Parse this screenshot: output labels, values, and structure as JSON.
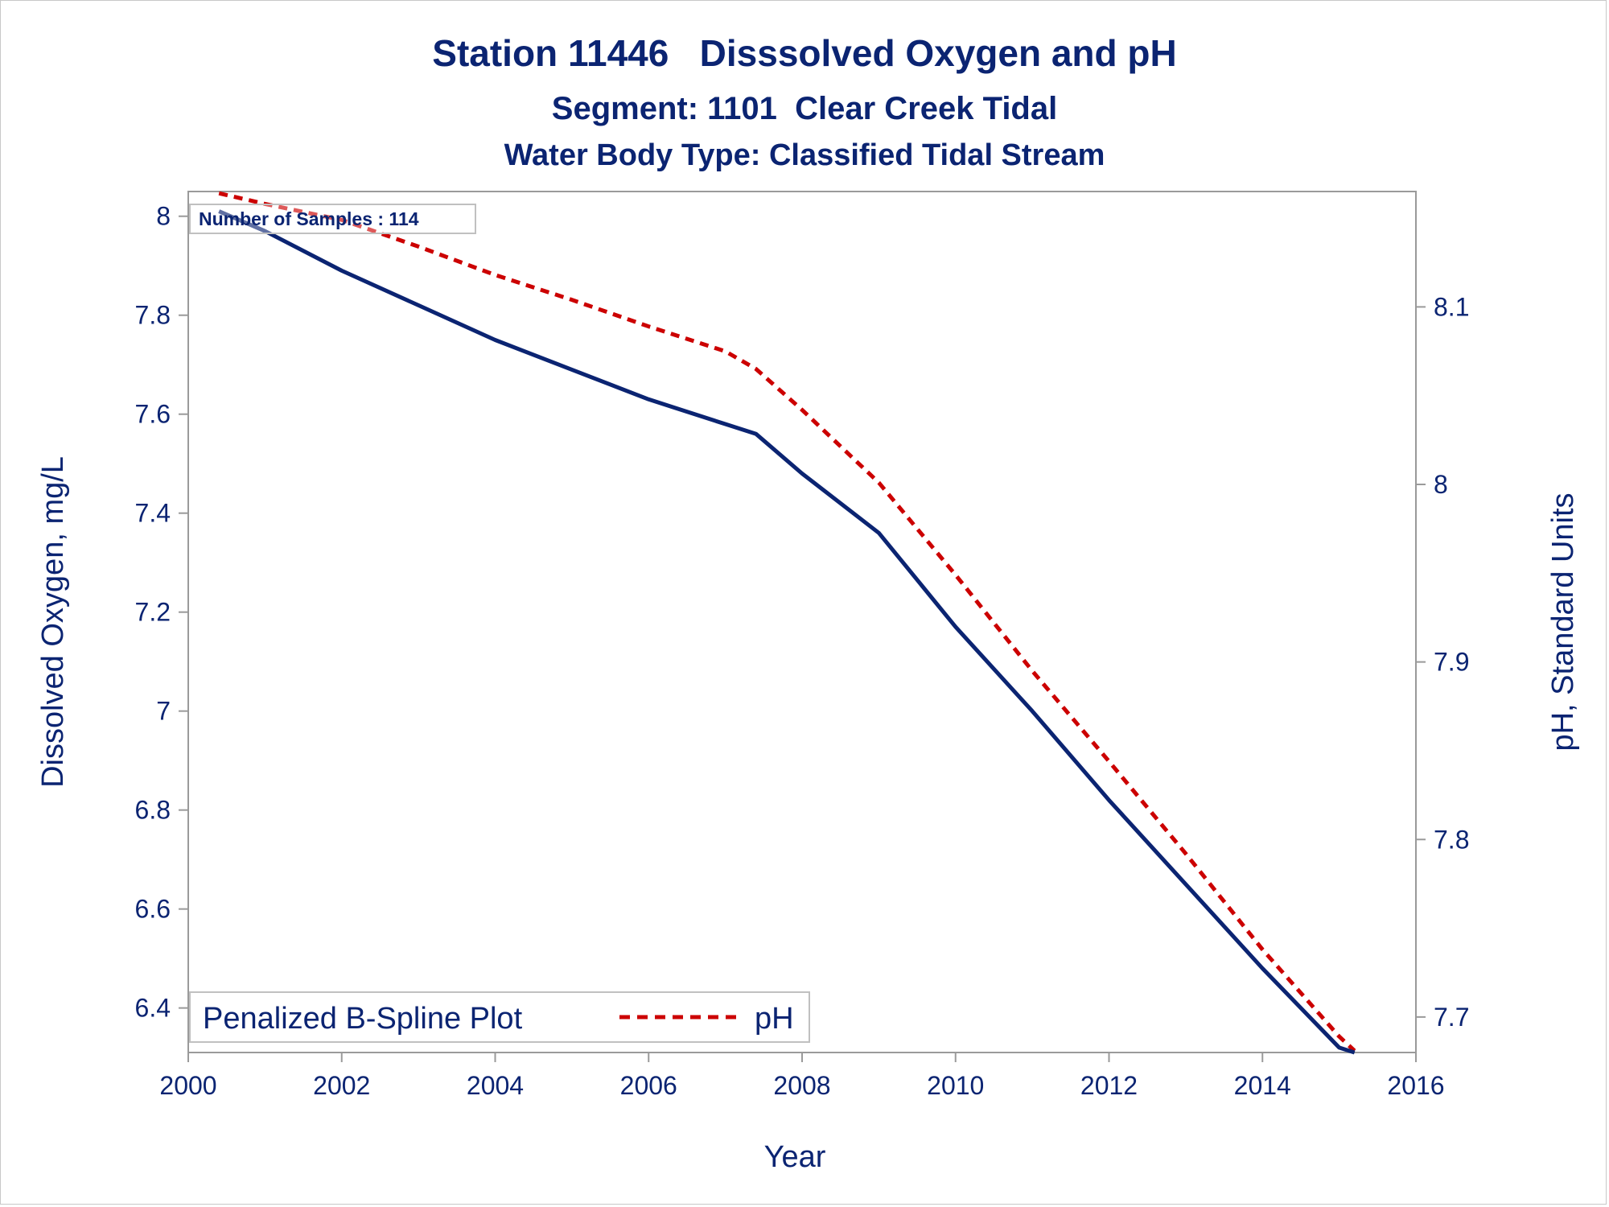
{
  "chart_data": {
    "type": "line",
    "title": "Station 11446   Disssolved Oxygen and pH",
    "subtitle": "Segment: 1101  Clear Creek Tidal",
    "subtitle2": "Water Body Type: Classified Tidal Stream",
    "xlabel": "Year",
    "ylabel": "Dissolved Oxygen, mg/L",
    "y2label": "pH, Standard Units",
    "xlim": [
      2000,
      2016
    ],
    "ylim": [
      6.31,
      8.05
    ],
    "y2lim": [
      7.68,
      8.165
    ],
    "xticks": [
      "2000",
      "2002",
      "2004",
      "2006",
      "2008",
      "2010",
      "2012",
      "2014",
      "2016"
    ],
    "yticks": [
      "6.4",
      "6.6",
      "6.8",
      "7",
      "7.2",
      "7.4",
      "7.6",
      "7.8",
      "8"
    ],
    "y2ticks": [
      "7.7",
      "7.8",
      "7.9",
      "8",
      "8.1"
    ],
    "grid": false,
    "legend_title": "Penalized B-Spline Plot",
    "legend_placement": "bottom-left",
    "annotation": "Number of Samples : 114",
    "series": [
      {
        "axis": "left",
        "color": "#0b2472",
        "style": "solid",
        "x": [
          2000.4,
          2001,
          2002,
          2003,
          2004,
          2005,
          2006,
          2007,
          2007.4,
          2008,
          2009,
          2010,
          2011,
          2012,
          2013,
          2014,
          2015,
          2015.2
        ],
        "y": [
          8.01,
          7.97,
          7.89,
          7.82,
          7.75,
          7.69,
          7.63,
          7.58,
          7.56,
          7.48,
          7.36,
          7.17,
          7.0,
          6.82,
          6.65,
          6.48,
          6.32,
          6.31
        ]
      },
      {
        "name": "pH",
        "axis": "right",
        "color": "#cc0000",
        "style": "dashed",
        "x": [
          2000.4,
          2001,
          2002,
          2003,
          2004,
          2005,
          2006,
          2007,
          2007.4,
          2008,
          2009,
          2010,
          2011,
          2012,
          2013,
          2014,
          2015,
          2015.2
        ],
        "y": [
          8.164,
          8.158,
          8.149,
          8.134,
          8.118,
          8.104,
          8.089,
          8.075,
          8.065,
          8.042,
          8.001,
          7.949,
          7.895,
          7.844,
          7.792,
          7.738,
          7.689,
          7.681
        ]
      }
    ]
  }
}
